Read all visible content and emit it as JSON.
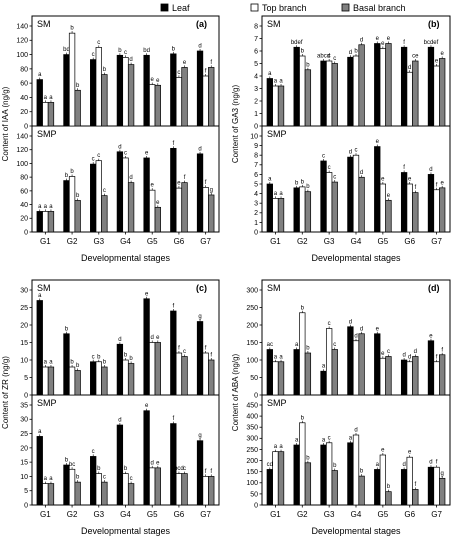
{
  "legend": [
    {
      "name": "Leaf",
      "color": "#000000"
    },
    {
      "name": "Top branch",
      "color": "#ffffff"
    },
    {
      "name": "Basal branch",
      "color": "#808080"
    }
  ],
  "chart_data": [
    {
      "type": "bar",
      "panel": "(a)",
      "ylabel": "Content of IAA (ng/g)",
      "xlabel": "Developmental stages",
      "categories": [
        "G1",
        "G2",
        "G3",
        "G4",
        "G5",
        "G6",
        "G7"
      ],
      "subplots": [
        {
          "name": "SM",
          "ylim": [
            0,
            140
          ],
          "yticks": [
            0,
            20,
            40,
            60,
            80,
            100,
            120,
            140
          ],
          "values": [
            [
              65,
              100,
              93,
              99,
              99,
              101,
              105
            ],
            [
              33,
              130,
              110,
              96,
              58,
              68,
              70
            ],
            [
              33,
              50,
              72,
              86,
              57,
              82,
              82
            ]
          ],
          "labels": [
            [
              "a",
              "bd",
              "c",
              "b",
              "bd",
              "b",
              "d"
            ],
            [
              "a",
              "b",
              "c",
              "c",
              "e",
              "c",
              "f"
            ],
            [
              "a",
              "b",
              "b",
              "d",
              "e",
              "e",
              "f"
            ]
          ]
        },
        {
          "name": "SMP",
          "ylim": [
            0,
            140
          ],
          "yticks": [
            0,
            20,
            40,
            60,
            80,
            100,
            120,
            140
          ],
          "values": [
            [
              30,
              75,
              99,
              117,
              108,
              122,
              114
            ],
            [
              30,
              81,
              104,
              108,
              61,
              64,
              65
            ],
            [
              30,
              46,
              53,
              72,
              36,
              72,
              54
            ]
          ],
          "labels": [
            [
              "a",
              "b",
              "c",
              "d",
              "e",
              "f",
              "d"
            ],
            [
              "a",
              "b",
              "c",
              "c",
              "e",
              "e",
              "f"
            ],
            [
              "a",
              "b",
              "c",
              "d",
              "e",
              "f",
              "g"
            ]
          ]
        }
      ]
    },
    {
      "type": "bar",
      "panel": "(b)",
      "ylabel": "Content of GA3 (ng/g)",
      "xlabel": "Developmental stages",
      "categories": [
        "G1",
        "G2",
        "G3",
        "G4",
        "G5",
        "G6",
        "G7"
      ],
      "subplots": [
        {
          "name": "SM",
          "ylim": [
            0,
            8
          ],
          "yticks": [
            0,
            1,
            2,
            3,
            4,
            5,
            6,
            7,
            8
          ],
          "values": [
            [
              3.8,
              6.3,
              5.2,
              5.5,
              6.6,
              6.3,
              6.3
            ],
            [
              3.2,
              5.6,
              5.2,
              5.6,
              6.2,
              4.3,
              4.8
            ],
            [
              3.2,
              4.5,
              5.0,
              6.5,
              6.6,
              5.2,
              5.4
            ]
          ],
          "labels": [
            [
              "a",
              "bdef",
              "abcd",
              "d",
              "e",
              "f",
              "bcdef"
            ],
            [
              "a",
              "b",
              "c",
              "b",
              "e",
              "d",
              "e"
            ],
            [
              "a",
              "b",
              "c",
              "d",
              "e",
              "ce",
              "e"
            ]
          ]
        },
        {
          "name": "SMP",
          "ylim": [
            0,
            10
          ],
          "yticks": [
            0,
            1,
            2,
            3,
            4,
            5,
            6,
            7,
            8,
            9,
            10
          ],
          "values": [
            [
              5.0,
              4.6,
              7.4,
              7.8,
              8.9,
              6.2,
              6.0
            ],
            [
              3.5,
              4.7,
              6.2,
              8.0,
              5.0,
              5.0,
              4.4
            ],
            [
              3.5,
              4.2,
              5.2,
              5.7,
              3.3,
              4.1,
              4.6
            ]
          ],
          "labels": [
            [
              "a",
              "b",
              "c",
              "d",
              "e",
              "f",
              "d"
            ],
            [
              "a",
              "b",
              "c",
              "c",
              "e",
              "e",
              "f"
            ],
            [
              "a",
              "b",
              "c",
              "d",
              "e",
              "f",
              "e"
            ]
          ]
        }
      ]
    },
    {
      "type": "bar",
      "panel": "(c)",
      "ylabel": "Content of ZR (ng/g)",
      "xlabel": "Developmental stages",
      "categories": [
        "G1",
        "G2",
        "G3",
        "G4",
        "G5",
        "G6",
        "G7"
      ],
      "subplots": [
        {
          "name": "SM",
          "ylim": [
            0,
            30
          ],
          "yticks": [
            0,
            5,
            10,
            15,
            20,
            25,
            30
          ],
          "values": [
            [
              27,
              17.5,
              9.5,
              14.5,
              27.5,
              24,
              21
            ],
            [
              8,
              8,
              9.5,
              10,
              15,
              12,
              12
            ],
            [
              8,
              7,
              8,
              9,
              15,
              11,
              10
            ]
          ],
          "labels": [
            [
              "a",
              "b",
              "c",
              "d",
              "e",
              "f",
              "g"
            ],
            [
              "a",
              "b",
              "b",
              "b",
              "d",
              "f",
              "f"
            ],
            [
              "a",
              "b",
              "b",
              "b",
              "e",
              "c",
              "f"
            ]
          ]
        },
        {
          "name": "SMP",
          "ylim": [
            0,
            35
          ],
          "yticks": [
            0,
            5,
            10,
            15,
            20,
            25,
            30,
            35
          ],
          "values": [
            [
              24,
              14,
              17,
              28,
              33,
              28.5,
              22.5
            ],
            [
              7.5,
              12.5,
              11,
              11,
              13,
              11,
              10
            ],
            [
              7.5,
              8,
              8,
              7.5,
              13,
              11,
              10
            ]
          ],
          "labels": [
            [
              "a",
              "b",
              "c",
              "d",
              "e",
              "f",
              "g"
            ],
            [
              "a",
              "bc",
              "b",
              "b",
              "d",
              "bcd",
              "f"
            ],
            [
              "a",
              "b",
              "c",
              "c",
              "e",
              "c",
              "f"
            ]
          ]
        }
      ]
    },
    {
      "type": "bar",
      "panel": "(d)",
      "ylabel": "Content of ABA (ng/g)",
      "xlabel": "Developmental stages",
      "categories": [
        "G1",
        "G2",
        "G3",
        "G4",
        "G5",
        "G6",
        "G7"
      ],
      "subplots": [
        {
          "name": "SM",
          "ylim": [
            0,
            300
          ],
          "yticks": [
            0,
            50,
            100,
            150,
            200,
            250,
            300
          ],
          "values": [
            [
              130,
              130,
              68,
              195,
              175,
              100,
              155
            ],
            [
              95,
              235,
              190,
              155,
              105,
              95,
              95
            ],
            [
              95,
              120,
              130,
              175,
              110,
              110,
              115
            ]
          ],
          "labels": [
            [
              "ac",
              "a",
              "a",
              "d",
              "e",
              "d",
              "e"
            ],
            [
              "a",
              "b",
              "c",
              "d",
              "e",
              "d",
              "f"
            ],
            [
              "a",
              "b",
              "c",
              "d",
              "c",
              "d",
              "f"
            ]
          ]
        },
        {
          "name": "SMP",
          "ylim": [
            0,
            450
          ],
          "yticks": [
            0,
            50,
            100,
            150,
            200,
            250,
            300,
            350,
            400,
            450
          ],
          "values": [
            [
              160,
              270,
              270,
              280,
              160,
              160,
              170
            ],
            [
              240,
              370,
              280,
              315,
              225,
              215,
              170
            ],
            [
              240,
              190,
              155,
              130,
              60,
              70,
              120
            ]
          ],
          "labels": [
            [
              "cd",
              "a",
              "a",
              "a",
              "a",
              "d",
              "d"
            ],
            [
              "a",
              "b",
              "c",
              "d",
              "e",
              "e",
              "f"
            ],
            [
              "a",
              "b",
              "b",
              "b",
              "b",
              "f",
              "g"
            ]
          ]
        }
      ]
    }
  ]
}
